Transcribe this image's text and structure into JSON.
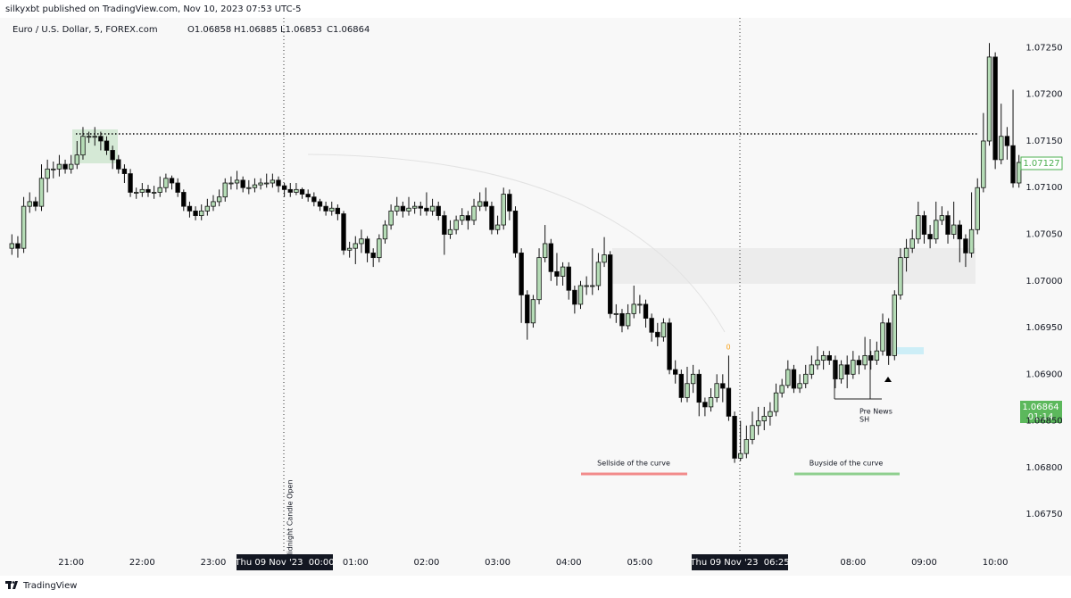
{
  "header": {
    "published": "silkyxbt published on TradingView.com, Nov 10, 2023 07:53 UTC-5",
    "ohlc": [
      "O1.06858",
      "H1.06885",
      "L1.06853",
      "C1.06864"
    ],
    "footer": "TradingView"
  },
  "chart_data": {
    "type": "candlestick",
    "title": "Euro / U.S. Dollar, 5, FOREX.com",
    "up_color": "#b5dcb6",
    "down_color": "#000000",
    "grid": false,
    "xlim": [
      -234,
      622.5
    ],
    "xticks": [
      {
        "value": -180,
        "label": "21:00"
      },
      {
        "value": -120,
        "label": "22:00"
      },
      {
        "value": -60,
        "label": "23:00"
      },
      {
        "value": 60,
        "label": "01:00"
      },
      {
        "value": 120,
        "label": "02:00"
      },
      {
        "value": 180,
        "label": "03:00"
      },
      {
        "value": 240,
        "label": "04:00"
      },
      {
        "value": 300,
        "label": "05:00"
      },
      {
        "value": 480,
        "label": "08:00"
      },
      {
        "value": 540,
        "label": "09:00"
      },
      {
        "value": 600,
        "label": "10:00"
      }
    ],
    "ylim": [
      1.06708,
      1.07282
    ],
    "yticks": [
      {
        "value": 1.0725,
        "label": "1.07250"
      },
      {
        "value": 1.072,
        "label": "1.07200"
      },
      {
        "value": 1.0715,
        "label": "1.07150"
      },
      {
        "value": 1.071,
        "label": "1.07100"
      },
      {
        "value": 1.0705,
        "label": "1.07050"
      },
      {
        "value": 1.07,
        "label": "1.07000"
      },
      {
        "value": 1.0695,
        "label": "1.06950"
      },
      {
        "value": 1.069,
        "label": "1.06900"
      },
      {
        "value": 1.0685,
        "label": "1.06850"
      },
      {
        "value": 1.068,
        "label": "1.06800"
      },
      {
        "value": 1.0675,
        "label": "1.06750"
      }
    ],
    "x": [
      -230,
      -225,
      -220,
      -215,
      -210,
      -205,
      -200,
      -195,
      -190,
      -185,
      -180,
      -175,
      -170,
      -165,
      -160,
      -155,
      -150,
      -145,
      -140,
      -135,
      -130,
      -125,
      -120,
      -115,
      -110,
      -105,
      -100,
      -95,
      -90,
      -85,
      -80,
      -75,
      -70,
      -65,
      -60,
      -55,
      -50,
      -45,
      -40,
      -35,
      -30,
      -25,
      -20,
      -15,
      -10,
      -5,
      0,
      5,
      10,
      15,
      20,
      25,
      30,
      35,
      40,
      45,
      50,
      55,
      60,
      65,
      70,
      75,
      80,
      85,
      90,
      95,
      100,
      105,
      110,
      115,
      120,
      125,
      130,
      135,
      140,
      145,
      150,
      155,
      160,
      165,
      170,
      175,
      180,
      185,
      190,
      195,
      200,
      205,
      210,
      215,
      220,
      225,
      230,
      235,
      240,
      245,
      250,
      255,
      260,
      265,
      270,
      275,
      280,
      285,
      290,
      295,
      300,
      305,
      310,
      315,
      320,
      325,
      330,
      335,
      340,
      345,
      350,
      355,
      360,
      365,
      370,
      375,
      380,
      385,
      390,
      395,
      400,
      405,
      410,
      415,
      420,
      425,
      430,
      435,
      440,
      445,
      450,
      455,
      460,
      465,
      470,
      475,
      480,
      485,
      490,
      495,
      500,
      505,
      510,
      515,
      520,
      525,
      530,
      535,
      540,
      545,
      550,
      555,
      560,
      565,
      570,
      575,
      580,
      585,
      590,
      595,
      600,
      605,
      610,
      615,
      620
    ],
    "open": [
      1.07035,
      1.0704,
      1.07035,
      1.0708,
      1.07085,
      1.0708,
      1.0711,
      1.0712,
      1.0712,
      1.07125,
      1.0712,
      1.07125,
      1.07135,
      1.07155,
      1.07155,
      1.07155,
      1.0715,
      1.0714,
      1.0713,
      1.0712,
      1.07115,
      1.07095,
      1.07095,
      1.07098,
      1.07095,
      1.07095,
      1.071,
      1.0711,
      1.07105,
      1.07095,
      1.0708,
      1.07075,
      1.0707,
      1.07075,
      1.0708,
      1.07085,
      1.0709,
      1.07105,
      1.07105,
      1.07108,
      1.071,
      1.071,
      1.07103,
      1.07105,
      1.07105,
      1.07108,
      1.07102,
      1.07098,
      1.07095,
      1.07098,
      1.07093,
      1.0709,
      1.07085,
      1.0708,
      1.07075,
      1.07078,
      1.07072,
      1.07033,
      1.07035,
      1.0704,
      1.07045,
      1.0703,
      1.07025,
      1.07045,
      1.0706,
      1.07075,
      1.0708,
      1.07075,
      1.07078,
      1.0708,
      1.07078,
      1.07075,
      1.0708,
      1.0707,
      1.0705,
      1.07055,
      1.07065,
      1.0707,
      1.07065,
      1.0708,
      1.07085,
      1.0708,
      1.07055,
      1.0706,
      1.07093,
      1.07075,
      1.0703,
      1.06985,
      1.06955,
      1.0698,
      1.07025,
      1.0704,
      1.0701,
      1.07005,
      1.07015,
      1.0699,
      1.06975,
      1.06995,
      1.06995,
      1.06995,
      1.0702,
      1.07028,
      1.06965,
      1.06965,
      1.06952,
      1.06965,
      1.06975,
      1.06975,
      1.0696,
      1.06945,
      1.0694,
      1.06955,
      1.06905,
      1.069,
      1.06875,
      1.0689,
      1.069,
      1.0687,
      1.06865,
      1.06875,
      1.0689,
      1.06885,
      1.06855,
      1.0681,
      1.06815,
      1.0683,
      1.06845,
      1.0685,
      1.06855,
      1.0686,
      1.0688,
      1.06888,
      1.06905,
      1.06885,
      1.0689,
      1.069,
      1.0691,
      1.06915,
      1.0692,
      1.06915,
      1.06895,
      1.0691,
      1.069,
      1.06915,
      1.0691,
      1.0692,
      1.06915,
      1.06925,
      1.06955,
      1.0692,
      1.06985,
      1.07025,
      1.07035,
      1.07045,
      1.0707,
      1.0705,
      1.07045,
      1.07065,
      1.0707,
      1.0705,
      1.0706,
      1.07045,
      1.0703,
      1.07055,
      1.071,
      1.0715,
      1.0724,
      1.0713,
      1.07155,
      1.07145,
      1.07105
    ],
    "high": [
      1.0705,
      1.07048,
      1.0709,
      1.07095,
      1.0709,
      1.07125,
      1.0713,
      1.07128,
      1.07135,
      1.0713,
      1.07135,
      1.0715,
      1.07165,
      1.0716,
      1.07165,
      1.0716,
      1.07155,
      1.07145,
      1.07135,
      1.07125,
      1.0712,
      1.071,
      1.07105,
      1.07103,
      1.07102,
      1.07112,
      1.07115,
      1.07113,
      1.0711,
      1.07098,
      1.07085,
      1.0708,
      1.07082,
      1.07088,
      1.07092,
      1.07098,
      1.0711,
      1.07112,
      1.07118,
      1.07112,
      1.07108,
      1.0711,
      1.0711,
      1.07115,
      1.07115,
      1.07112,
      1.07105,
      1.07105,
      1.07105,
      1.071,
      1.07098,
      1.07095,
      1.07088,
      1.07085,
      1.07085,
      1.07082,
      1.07075,
      1.07042,
      1.07048,
      1.07055,
      1.07048,
      1.07035,
      1.0705,
      1.07065,
      1.07082,
      1.0709,
      1.07085,
      1.0709,
      1.07085,
      1.07085,
      1.07095,
      1.07088,
      1.07085,
      1.07075,
      1.07065,
      1.0707,
      1.07078,
      1.07075,
      1.07088,
      1.07095,
      1.071,
      1.07085,
      1.0707,
      1.071,
      1.07098,
      1.0708,
      1.07035,
      1.0699,
      1.06985,
      1.07035,
      1.0706,
      1.07045,
      1.0703,
      1.0702,
      1.0702,
      1.06995,
      1.07,
      1.07005,
      1.07035,
      1.0703,
      1.07047,
      1.07032,
      1.06975,
      1.0697,
      1.06975,
      1.06995,
      1.06985,
      1.0698,
      1.06965,
      1.06955,
      1.0696,
      1.0696,
      1.06915,
      1.06905,
      1.06908,
      1.0691,
      1.06905,
      1.06875,
      1.06885,
      1.069,
      1.069,
      1.0692,
      1.0686,
      1.0685,
      1.06845,
      1.0686,
      1.06865,
      1.06865,
      1.0687,
      1.0689,
      1.06895,
      1.06915,
      1.0691,
      1.069,
      1.0691,
      1.0692,
      1.0693,
      1.06925,
      1.06925,
      1.0692,
      1.06915,
      1.0692,
      1.06925,
      1.0692,
      1.0694,
      1.06925,
      1.06935,
      1.06965,
      1.0696,
      1.0699,
      1.07035,
      1.07045,
      1.07055,
      1.07085,
      1.07075,
      1.0706,
      1.07085,
      1.0708,
      1.07075,
      1.07085,
      1.07065,
      1.0705,
      1.07095,
      1.0711,
      1.0718,
      1.07255,
      1.07245,
      1.0719,
      1.07165,
      1.07205,
      1.07135
    ],
    "low": [
      1.07028,
      1.07025,
      1.0703,
      1.07073,
      1.07075,
      1.07075,
      1.07095,
      1.0711,
      1.07112,
      1.07115,
      1.07115,
      1.0712,
      1.0713,
      1.07148,
      1.07145,
      1.0714,
      1.07135,
      1.0712,
      1.07115,
      1.07105,
      1.0709,
      1.07088,
      1.0709,
      1.0709,
      1.07088,
      1.0709,
      1.07095,
      1.07098,
      1.0709,
      1.07075,
      1.07068,
      1.07065,
      1.07065,
      1.0707,
      1.07075,
      1.0708,
      1.07085,
      1.07098,
      1.07098,
      1.07095,
      1.07093,
      1.07095,
      1.07098,
      1.071,
      1.071,
      1.07095,
      1.0709,
      1.0709,
      1.07092,
      1.07088,
      1.07085,
      1.0708,
      1.07075,
      1.0707,
      1.0707,
      1.07065,
      1.07028,
      1.07025,
      1.07018,
      1.0703,
      1.0702,
      1.07015,
      1.0702,
      1.0704,
      1.07055,
      1.0707,
      1.07068,
      1.0707,
      1.07072,
      1.0707,
      1.0707,
      1.0707,
      1.07065,
      1.07028,
      1.07045,
      1.0705,
      1.0706,
      1.07055,
      1.0706,
      1.07075,
      1.07075,
      1.0705,
      1.0705,
      1.07055,
      1.07065,
      1.07025,
      1.06955,
      1.06937,
      1.0695,
      1.06975,
      1.0702,
      1.07,
      1.06995,
      1.06995,
      1.0698,
      1.06965,
      1.0697,
      1.06985,
      1.06985,
      1.0699,
      1.07015,
      1.0696,
      1.06955,
      1.06945,
      1.06948,
      1.0696,
      1.06965,
      1.0695,
      1.06935,
      1.0693,
      1.06935,
      1.069,
      1.0689,
      1.0687,
      1.0687,
      1.0688,
      1.06855,
      1.06855,
      1.0686,
      1.0687,
      1.0687,
      1.0685,
      1.06805,
      1.06807,
      1.0681,
      1.06825,
      1.06835,
      1.0684,
      1.06845,
      1.06855,
      1.06875,
      1.06885,
      1.0688,
      1.0688,
      1.06885,
      1.06895,
      1.06905,
      1.06905,
      1.0691,
      1.06885,
      1.0689,
      1.06885,
      1.06895,
      1.069,
      1.06905,
      1.06905,
      1.0691,
      1.0692,
      1.0691,
      1.06915,
      1.0698,
      1.0701,
      1.0703,
      1.0704,
      1.0704,
      1.07035,
      1.0704,
      1.0706,
      1.0704,
      1.07045,
      1.0702,
      1.07015,
      1.07025,
      1.0705,
      1.07095,
      1.07145,
      1.0712,
      1.07125,
      1.0713,
      1.071,
      1.071
    ],
    "close": [
      1.0704,
      1.07035,
      1.0708,
      1.07085,
      1.0708,
      1.0711,
      1.0712,
      1.0712,
      1.07125,
      1.0712,
      1.07125,
      1.07135,
      1.07155,
      1.07155,
      1.07155,
      1.0715,
      1.0714,
      1.0713,
      1.0712,
      1.07115,
      1.07095,
      1.07095,
      1.07098,
      1.07095,
      1.07095,
      1.071,
      1.0711,
      1.07105,
      1.07095,
      1.0708,
      1.07075,
      1.0707,
      1.07075,
      1.0708,
      1.07085,
      1.0709,
      1.07105,
      1.07105,
      1.07108,
      1.071,
      1.071,
      1.07103,
      1.07105,
      1.07105,
      1.07108,
      1.07102,
      1.07098,
      1.07095,
      1.07098,
      1.07093,
      1.0709,
      1.07085,
      1.0708,
      1.07075,
      1.07078,
      1.07072,
      1.07033,
      1.07035,
      1.0704,
      1.07045,
      1.0703,
      1.07025,
      1.07045,
      1.0706,
      1.07075,
      1.0708,
      1.07075,
      1.07078,
      1.0708,
      1.07078,
      1.07075,
      1.0708,
      1.0707,
      1.0705,
      1.07055,
      1.07065,
      1.0707,
      1.07065,
      1.0708,
      1.07085,
      1.0708,
      1.07055,
      1.0706,
      1.07093,
      1.07075,
      1.0703,
      1.06985,
      1.06955,
      1.0698,
      1.07025,
      1.0704,
      1.0701,
      1.07005,
      1.07015,
      1.0699,
      1.06975,
      1.06995,
      1.06995,
      1.06995,
      1.0702,
      1.07028,
      1.06965,
      1.06965,
      1.06952,
      1.06965,
      1.06975,
      1.06975,
      1.0696,
      1.06945,
      1.0694,
      1.06955,
      1.06905,
      1.069,
      1.06875,
      1.0689,
      1.069,
      1.0687,
      1.06865,
      1.06875,
      1.0689,
      1.06885,
      1.06855,
      1.0681,
      1.06815,
      1.0683,
      1.06845,
      1.0685,
      1.06855,
      1.0686,
      1.0688,
      1.06888,
      1.06905,
      1.06885,
      1.0689,
      1.069,
      1.0691,
      1.06915,
      1.0692,
      1.06915,
      1.06895,
      1.0691,
      1.069,
      1.06915,
      1.0691,
      1.0692,
      1.06915,
      1.06925,
      1.06955,
      1.0692,
      1.06985,
      1.07025,
      1.07035,
      1.07045,
      1.0707,
      1.0705,
      1.07045,
      1.07065,
      1.0707,
      1.0705,
      1.0706,
      1.07045,
      1.0703,
      1.07055,
      1.071,
      1.0715,
      1.0724,
      1.0713,
      1.07155,
      1.07145,
      1.07105,
      1.07127
    ],
    "crosshair_labels": [
      "Thu 09 Nov '23  00:00",
      "Thu 09 Nov '23  06:25"
    ],
    "price_labels": {
      "last": "1.07127",
      "crosshair": "1.06864",
      "countdown": "01:14"
    },
    "annotations": {
      "midnight": "Midnight Candle Open",
      "sellside": "Sellside of the curve",
      "buyside": "Buyside of the curve",
      "pre_news": "Pre News",
      "sh": "SH",
      "marker": "0"
    }
  }
}
